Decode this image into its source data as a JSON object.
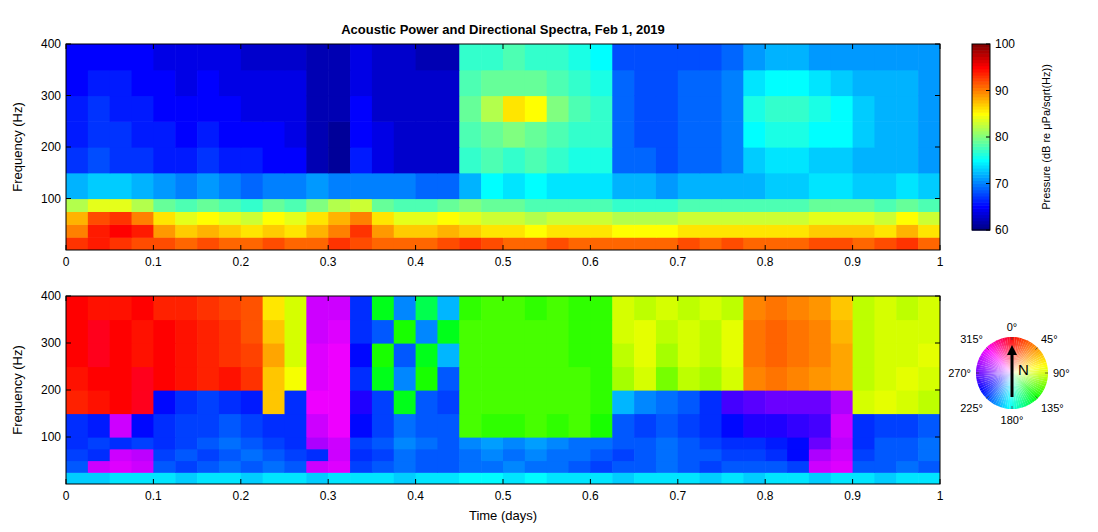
{
  "chart_data": [
    {
      "type": "heatmap",
      "title": "Acoustic Power and Directional Spectra, Feb 1, 2019",
      "ylabel": "Frequency (Hz)",
      "xlim": [
        0,
        1
      ],
      "ylim": [
        0,
        400
      ],
      "xticks": [
        0,
        0.1,
        0.2,
        0.3,
        0.4,
        0.5,
        0.6,
        0.7,
        0.8,
        0.9,
        1
      ],
      "yticks": [
        100,
        200,
        300,
        400
      ],
      "x_edges": [
        0,
        0.025,
        0.05,
        0.075,
        0.1,
        0.125,
        0.15,
        0.175,
        0.2,
        0.225,
        0.25,
        0.275,
        0.3,
        0.325,
        0.35,
        0.375,
        0.4,
        0.425,
        0.45,
        0.475,
        0.5,
        0.525,
        0.55,
        0.575,
        0.6,
        0.625,
        0.65,
        0.675,
        0.7,
        0.725,
        0.75,
        0.775,
        0.8,
        0.825,
        0.85,
        0.875,
        0.9,
        0.925,
        0.95,
        0.975,
        1
      ],
      "y_edges": [
        0,
        25,
        50,
        75,
        100,
        150,
        200,
        250,
        300,
        350,
        400
      ],
      "values": [
        [
          93,
          94,
          93,
          92,
          92,
          91,
          92,
          91,
          91,
          92,
          91,
          91,
          93,
          92,
          91,
          91,
          91,
          92,
          93,
          92,
          91,
          91,
          92,
          91,
          91,
          91,
          91,
          91,
          92,
          91,
          92,
          91,
          91,
          91,
          92,
          92,
          91,
          92,
          93,
          91
        ],
        [
          90,
          94,
          95,
          94,
          89,
          87,
          88,
          87,
          86,
          87,
          86,
          88,
          90,
          93,
          89,
          87,
          87,
          88,
          87,
          86,
          86,
          85,
          86,
          86,
          86,
          85,
          85,
          85,
          86,
          86,
          86,
          86,
          86,
          86,
          87,
          87,
          87,
          86,
          88,
          86
        ],
        [
          88,
          92,
          93,
          90,
          86,
          84,
          85,
          84,
          83,
          85,
          84,
          86,
          88,
          90,
          86,
          84,
          84,
          85,
          84,
          83,
          83,
          82,
          83,
          83,
          83,
          82,
          82,
          82,
          83,
          83,
          83,
          83,
          83,
          83,
          84,
          84,
          84,
          83,
          85,
          83
        ],
        [
          82,
          84,
          84,
          82,
          79,
          78,
          79,
          78,
          77,
          79,
          78,
          80,
          82,
          83,
          79,
          78,
          78,
          79,
          80,
          79,
          79,
          78,
          78,
          78,
          78,
          77,
          77,
          77,
          78,
          78,
          78,
          78,
          78,
          78,
          79,
          79,
          79,
          78,
          79,
          78
        ],
        [
          72,
          73,
          73,
          72,
          71,
          70,
          71,
          70,
          69,
          70,
          70,
          71,
          70,
          70,
          70,
          70,
          69,
          69,
          72,
          75,
          74,
          75,
          74,
          74,
          74,
          72,
          72,
          71,
          72,
          72,
          72,
          72,
          73,
          73,
          74,
          74,
          73,
          73,
          74,
          73
        ],
        [
          67,
          68,
          67,
          67,
          66,
          66,
          67,
          66,
          66,
          65,
          65,
          62,
          61,
          66,
          64,
          63,
          63,
          63,
          77,
          78,
          77,
          78,
          77,
          76,
          76,
          69,
          69,
          68,
          69,
          69,
          70,
          73,
          74,
          74,
          73,
          73,
          72,
          72,
          72,
          71
        ],
        [
          66,
          67,
          67,
          66,
          66,
          65,
          66,
          65,
          65,
          65,
          64,
          62,
          61,
          65,
          64,
          63,
          63,
          63,
          78,
          79,
          80,
          79,
          78,
          77,
          77,
          69,
          68,
          68,
          69,
          69,
          70,
          75,
          76,
          76,
          75,
          75,
          73,
          72,
          72,
          71
        ],
        [
          66,
          67,
          66,
          66,
          65,
          65,
          65,
          65,
          64,
          64,
          64,
          62,
          62,
          65,
          63,
          63,
          63,
          63,
          79,
          82,
          86,
          85,
          80,
          78,
          77,
          69,
          68,
          68,
          69,
          69,
          70,
          76,
          77,
          77,
          76,
          75,
          73,
          72,
          72,
          71
        ],
        [
          65,
          66,
          66,
          65,
          65,
          64,
          65,
          64,
          64,
          64,
          64,
          62,
          62,
          64,
          63,
          63,
          63,
          63,
          78,
          79,
          79,
          79,
          78,
          77,
          76,
          69,
          68,
          68,
          69,
          69,
          70,
          74,
          75,
          75,
          74,
          73,
          72,
          72,
          72,
          71
        ],
        [
          65,
          65,
          65,
          65,
          64,
          64,
          64,
          64,
          63,
          63,
          63,
          62,
          62,
          64,
          63,
          63,
          62,
          62,
          77,
          77,
          78,
          77,
          77,
          76,
          75,
          68,
          68,
          68,
          68,
          68,
          69,
          71,
          72,
          72,
          71,
          71,
          71,
          71,
          71,
          71
        ]
      ],
      "colorbar": {
        "range": [
          60,
          100
        ],
        "ticks": [
          60,
          70,
          80,
          90,
          100
        ],
        "label": "Pressure (dB re μPa/sqrt(Hz))"
      }
    },
    {
      "type": "heatmap",
      "xlabel": "Time (days)",
      "ylabel": "Frequency (Hz)",
      "xlim": [
        0,
        1
      ],
      "ylim": [
        0,
        400
      ],
      "xticks": [
        0,
        0.1,
        0.2,
        0.3,
        0.4,
        0.5,
        0.6,
        0.7,
        0.8,
        0.9,
        1
      ],
      "yticks": [
        100,
        200,
        300,
        400
      ],
      "x_edges": [
        0,
        0.025,
        0.05,
        0.075,
        0.1,
        0.125,
        0.15,
        0.175,
        0.2,
        0.225,
        0.25,
        0.275,
        0.3,
        0.325,
        0.35,
        0.375,
        0.4,
        0.425,
        0.45,
        0.475,
        0.5,
        0.525,
        0.55,
        0.575,
        0.6,
        0.625,
        0.65,
        0.675,
        0.7,
        0.725,
        0.75,
        0.775,
        0.8,
        0.825,
        0.85,
        0.875,
        0.9,
        0.925,
        0.95,
        0.975,
        1
      ],
      "y_edges": [
        0,
        25,
        50,
        75,
        100,
        150,
        200,
        250,
        300,
        350,
        400
      ],
      "values": [
        [
          195,
          195,
          190,
          190,
          190,
          195,
          190,
          190,
          195,
          190,
          190,
          195,
          190,
          190,
          190,
          195,
          190,
          190,
          185,
          185,
          190,
          185,
          190,
          190,
          190,
          195,
          190,
          190,
          190,
          195,
          190,
          195,
          190,
          190,
          195,
          190,
          190,
          195,
          190,
          190
        ],
        [
          220,
          300,
          305,
          300,
          220,
          225,
          220,
          215,
          220,
          215,
          220,
          300,
          305,
          225,
          220,
          215,
          220,
          220,
          215,
          215,
          210,
          215,
          215,
          220,
          225,
          220,
          220,
          215,
          220,
          225,
          220,
          220,
          220,
          225,
          300,
          305,
          220,
          220,
          215,
          220
        ],
        [
          225,
          230,
          300,
          295,
          225,
          220,
          225,
          220,
          215,
          220,
          225,
          230,
          300,
          230,
          225,
          215,
          220,
          220,
          215,
          210,
          215,
          210,
          215,
          215,
          220,
          225,
          220,
          215,
          220,
          220,
          225,
          225,
          230,
          240,
          290,
          300,
          225,
          220,
          220,
          215
        ],
        [
          230,
          225,
          230,
          225,
          230,
          225,
          220,
          215,
          220,
          225,
          230,
          290,
          300,
          225,
          220,
          210,
          215,
          220,
          210,
          205,
          210,
          205,
          210,
          215,
          215,
          220,
          220,
          215,
          220,
          225,
          230,
          230,
          235,
          240,
          270,
          295,
          230,
          220,
          220,
          215
        ],
        [
          230,
          235,
          300,
          240,
          230,
          225,
          225,
          220,
          225,
          230,
          230,
          300,
          310,
          240,
          225,
          215,
          220,
          220,
          120,
          125,
          125,
          120,
          125,
          120,
          130,
          220,
          225,
          220,
          225,
          230,
          240,
          250,
          250,
          255,
          260,
          300,
          230,
          225,
          225,
          220
        ],
        [
          10,
          5,
          0,
          355,
          240,
          230,
          225,
          230,
          235,
          60,
          230,
          310,
          310,
          250,
          225,
          140,
          220,
          225,
          120,
          120,
          120,
          120,
          120,
          120,
          125,
          200,
          210,
          215,
          220,
          230,
          260,
          265,
          270,
          270,
          270,
          290,
          90,
          85,
          90,
          95
        ],
        [
          5,
          0,
          0,
          355,
          0,
          5,
          10,
          5,
          15,
          60,
          80,
          305,
          310,
          230,
          140,
          210,
          130,
          220,
          120,
          120,
          120,
          120,
          120,
          120,
          125,
          100,
          90,
          110,
          95,
          100,
          90,
          40,
          35,
          40,
          45,
          50,
          95,
          90,
          85,
          90
        ],
        [
          0,
          355,
          0,
          5,
          0,
          5,
          10,
          15,
          20,
          50,
          90,
          305,
          310,
          240,
          130,
          220,
          140,
          200,
          120,
          120,
          120,
          120,
          120,
          125,
          125,
          95,
          85,
          100,
          90,
          95,
          85,
          35,
          30,
          35,
          40,
          50,
          95,
          90,
          90,
          85
        ],
        [
          0,
          355,
          0,
          5,
          0,
          5,
          10,
          15,
          25,
          60,
          90,
          300,
          305,
          230,
          220,
          130,
          210,
          140,
          120,
          120,
          120,
          120,
          120,
          125,
          125,
          90,
          85,
          95,
          90,
          95,
          85,
          35,
          30,
          35,
          40,
          55,
          95,
          90,
          90,
          90
        ],
        [
          0,
          5,
          5,
          0,
          10,
          10,
          15,
          20,
          25,
          70,
          90,
          300,
          300,
          230,
          140,
          210,
          150,
          200,
          125,
          120,
          120,
          125,
          120,
          125,
          125,
          90,
          95,
          90,
          95,
          90,
          95,
          40,
          35,
          40,
          45,
          60,
          95,
          90,
          95,
          90
        ]
      ],
      "color_wheel": {
        "range": [
          0,
          360
        ],
        "ticks": [
          {
            "value": 0,
            "label": "0°"
          },
          {
            "value": 45,
            "label": "45°"
          },
          {
            "value": 90,
            "label": "90°"
          },
          {
            "value": 135,
            "label": "135°"
          },
          {
            "value": 180,
            "label": "180°"
          },
          {
            "value": 225,
            "label": "225°"
          },
          {
            "value": 270,
            "label": "270°"
          },
          {
            "value": 315,
            "label": "315°"
          }
        ],
        "north_label": "N"
      }
    }
  ]
}
